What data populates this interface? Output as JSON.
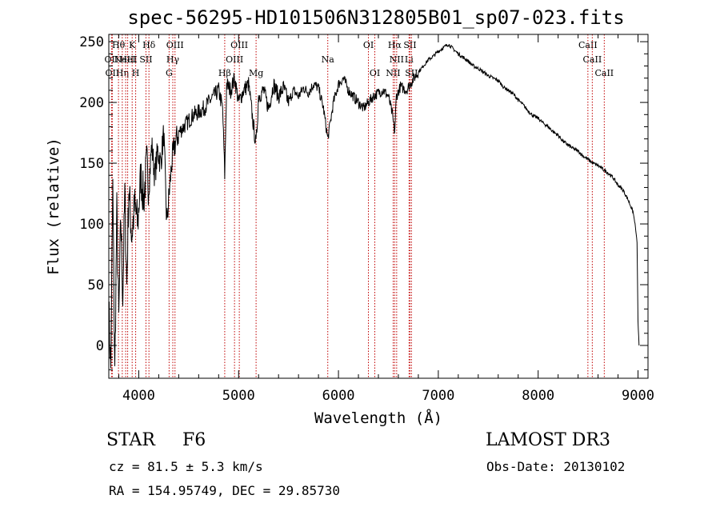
{
  "chart_data": {
    "type": "line",
    "title": "spec-56295-HD101506N312805B01_sp07-023.fits",
    "xlabel": "Wavelength (Å)",
    "ylabel": "Flux (relative)",
    "xlim": [
      3700,
      9100
    ],
    "ylim": [
      -27,
      256
    ],
    "xticks": [
      4000,
      5000,
      6000,
      7000,
      8000,
      9000
    ],
    "xtick_labels": [
      "4000",
      "5000",
      "6000",
      "7000",
      "8000",
      "9000"
    ],
    "yticks": [
      0,
      50,
      100,
      150,
      200,
      250
    ],
    "ytick_labels": [
      "0",
      "50",
      "100",
      "150",
      "200",
      "250"
    ],
    "grid": false,
    "series": [
      {
        "name": "flux",
        "x": [
          3700,
          3720,
          3740,
          3760,
          3780,
          3800,
          3820,
          3840,
          3860,
          3880,
          3900,
          3930,
          3960,
          3990,
          4020,
          4050,
          4080,
          4100,
          4130,
          4160,
          4190,
          4220,
          4250,
          4280,
          4300,
          4330,
          4360,
          4400,
          4450,
          4500,
          4550,
          4600,
          4650,
          4700,
          4750,
          4800,
          4840,
          4861,
          4880,
          4920,
          4960,
          5000,
          5050,
          5100,
          5150,
          5175,
          5200,
          5250,
          5300,
          5350,
          5400,
          5450,
          5500,
          5550,
          5600,
          5650,
          5700,
          5750,
          5800,
          5850,
          5893,
          5950,
          6000,
          6050,
          6100,
          6150,
          6200,
          6250,
          6300,
          6350,
          6400,
          6450,
          6500,
          6540,
          6563,
          6580,
          6620,
          6680,
          6740,
          6800,
          6850,
          6900,
          6950,
          7000,
          7050,
          7100,
          7150,
          7200,
          7250,
          7300,
          7350,
          7400,
          7450,
          7500,
          7550,
          7600,
          7650,
          7700,
          7750,
          7800,
          7850,
          7900,
          7950,
          8000,
          8050,
          8100,
          8150,
          8200,
          8250,
          8300,
          8350,
          8400,
          8450,
          8500,
          8550,
          8600,
          8650,
          8700,
          8750,
          8800,
          8850,
          8900,
          8950,
          8970,
          8990,
          9000,
          9010
        ],
        "values": [
          30,
          -20,
          130,
          -25,
          110,
          20,
          105,
          40,
          125,
          50,
          130,
          90,
          115,
          100,
          140,
          120,
          150,
          130,
          165,
          140,
          160,
          150,
          175,
          100,
          120,
          150,
          165,
          175,
          180,
          185,
          190,
          192,
          195,
          200,
          205,
          210,
          195,
          140,
          215,
          210,
          220,
          200,
          210,
          215,
          180,
          165,
          205,
          210,
          195,
          215,
          205,
          212,
          200,
          210,
          205,
          212,
          208,
          215,
          212,
          195,
          170,
          200,
          215,
          220,
          210,
          205,
          200,
          195,
          200,
          205,
          208,
          210,
          205,
          190,
          175,
          205,
          213,
          210,
          218,
          225,
          230,
          235,
          238,
          242,
          245,
          248,
          244,
          240,
          237,
          234,
          230,
          228,
          225,
          222,
          220,
          218,
          213,
          210,
          207,
          202,
          198,
          193,
          189,
          187,
          183,
          180,
          176,
          173,
          168,
          165,
          162,
          160,
          156,
          153,
          150,
          148,
          145,
          142,
          138,
          132,
          128,
          120,
          110,
          100,
          85,
          20,
          0
        ]
      }
    ],
    "line_markers": [
      {
        "wavelength": 3727,
        "row": 1,
        "label": "OII"
      },
      {
        "wavelength": 3735,
        "row": 2,
        "label": "OII"
      },
      {
        "wavelength": 3797,
        "row": 0,
        "label": "Hθ"
      },
      {
        "wavelength": 3835,
        "row": 2,
        "label": "Hη"
      },
      {
        "wavelength": 3869,
        "row": 1,
        "label": "NeIII"
      },
      {
        "wavelength": 3889,
        "row": 1,
        "label": "HeI"
      },
      {
        "wavelength": 3934,
        "row": 0,
        "label": "K"
      },
      {
        "wavelength": 3969,
        "row": 2,
        "label": "H"
      },
      {
        "wavelength": 4072,
        "row": 1,
        "label": "SII"
      },
      {
        "wavelength": 4102,
        "row": 0,
        "label": "Hδ"
      },
      {
        "wavelength": 4304,
        "row": 2,
        "label": "G"
      },
      {
        "wavelength": 4341,
        "row": 1,
        "label": "Hγ"
      },
      {
        "wavelength": 4363,
        "row": 0,
        "label": "OIII"
      },
      {
        "wavelength": 4861,
        "row": 2,
        "label": "Hβ"
      },
      {
        "wavelength": 4959,
        "row": 1,
        "label": "OIII"
      },
      {
        "wavelength": 5007,
        "row": 0,
        "label": "OIII"
      },
      {
        "wavelength": 5175,
        "row": 2,
        "label": "Mg"
      },
      {
        "wavelength": 5893,
        "row": 1,
        "label": "Na"
      },
      {
        "wavelength": 6300,
        "row": 0,
        "label": "OI"
      },
      {
        "wavelength": 6364,
        "row": 2,
        "label": "OI"
      },
      {
        "wavelength": 6548,
        "row": 2,
        "label": "NII"
      },
      {
        "wavelength": 6563,
        "row": 0,
        "label": "Hα"
      },
      {
        "wavelength": 6583,
        "row": 1,
        "label": "NII"
      },
      {
        "wavelength": 6707,
        "row": 1,
        "label": "Li"
      },
      {
        "wavelength": 6716,
        "row": 0,
        "label": "SII"
      },
      {
        "wavelength": 6731,
        "row": 2,
        "label": "SII"
      },
      {
        "wavelength": 8498,
        "row": 0,
        "label": "CaII"
      },
      {
        "wavelength": 8542,
        "row": 1,
        "label": "CaII"
      },
      {
        "wavelength": 8662,
        "row": 2,
        "label": "CaII"
      }
    ],
    "marker_color": "#c00000"
  },
  "info": {
    "object_type": "STAR",
    "subclass": "F6",
    "survey": "LAMOST DR3",
    "redshift": "cz = 81.5 ± 5.3 km/s",
    "obs_date": "Obs-Date: 20130102",
    "coords": "RA = 154.95749, DEC =  29.85730"
  }
}
